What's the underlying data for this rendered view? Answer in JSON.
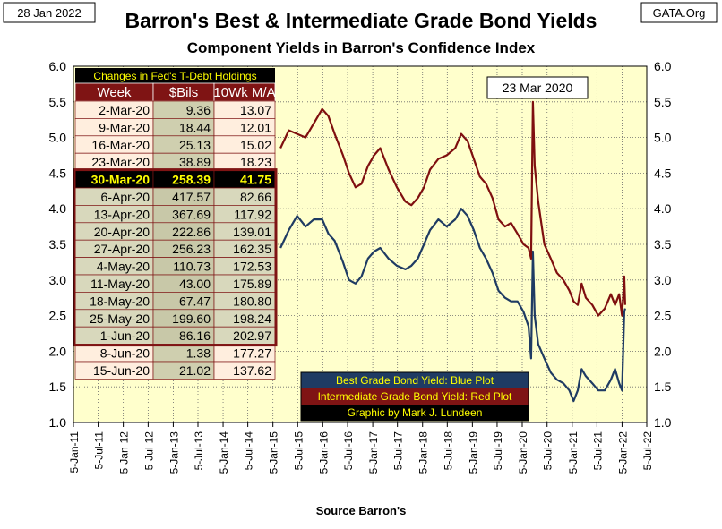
{
  "header": {
    "date": "28 Jan 2022",
    "brand": "GATA.Org",
    "title": "Barron's Best & Intermediate Grade Bond Yields",
    "subtitle": "Component Yields in Barron's Confidence Index",
    "source": "Source Barron's"
  },
  "colors": {
    "plot_bg": "#ffffcc",
    "best_line": "#1f3b63",
    "intermediate_line": "#7f0f0f",
    "table_header_bg": "#7f1414",
    "table_title_fg": "#ffff00",
    "table_cell_light": "#ffeede",
    "table_cell_dark": "#cfcfaf",
    "table_highlight_bg": "#000000",
    "table_highlight_fg": "#ffff00"
  },
  "table": {
    "title": "Changes in Fed's T-Debt Holdings",
    "headers": [
      "Week",
      "$Bils",
      "10Wk M/A"
    ],
    "rows": [
      [
        "2-Mar-20",
        "9.36",
        "13.07"
      ],
      [
        "9-Mar-20",
        "18.44",
        "12.01"
      ],
      [
        "16-Mar-20",
        "25.13",
        "15.02"
      ],
      [
        "23-Mar-20",
        "38.89",
        "18.23"
      ],
      [
        "30-Mar-20",
        "258.39",
        "41.75"
      ],
      [
        "6-Apr-20",
        "417.57",
        "82.66"
      ],
      [
        "13-Apr-20",
        "367.69",
        "117.92"
      ],
      [
        "20-Apr-20",
        "222.86",
        "139.01"
      ],
      [
        "27-Apr-20",
        "256.23",
        "162.35"
      ],
      [
        "4-May-20",
        "110.73",
        "172.53"
      ],
      [
        "11-May-20",
        "43.00",
        "175.89"
      ],
      [
        "18-May-20",
        "67.47",
        "180.80"
      ],
      [
        "25-May-20",
        "199.60",
        "198.24"
      ],
      [
        "1-Jun-20",
        "86.16",
        "202.97"
      ],
      [
        "8-Jun-20",
        "1.38",
        "177.27"
      ],
      [
        "15-Jun-20",
        "21.02",
        "137.62"
      ]
    ],
    "highlight_index": 4,
    "boxed_range": [
      4,
      13
    ]
  },
  "annotation": "23 Mar 2020",
  "legend": [
    {
      "label": "Best Grade Bond Yield: Blue Plot",
      "bg": "#1f3b63",
      "fg": "#ffff00"
    },
    {
      "label": "Intermediate Grade Bond Yield: Red Plot",
      "bg": "#7f1414",
      "fg": "#ffff00"
    },
    {
      "label": "Graphic by Mark J. Lundeen",
      "bg": "#000000",
      "fg": "#ffff00"
    }
  ],
  "chart_data": {
    "type": "line",
    "title": "Barron's Best & Intermediate Grade Bond Yields",
    "subtitle": "Component Yields in Barron's Confidence Index",
    "xlabel": "Source Barron's",
    "ylim": [
      1.0,
      6.0
    ],
    "yticks": [
      "1.0",
      "1.5",
      "2.0",
      "2.5",
      "3.0",
      "3.5",
      "4.0",
      "4.5",
      "5.0",
      "5.5",
      "6.0"
    ],
    "xlim": [
      "2011-01-05",
      "2022-07-05"
    ],
    "xticks": [
      "5-Jan-11",
      "5-Jul-11",
      "5-Jan-12",
      "5-Jul-12",
      "5-Jan-13",
      "5-Jul-13",
      "5-Jan-14",
      "5-Jul-14",
      "5-Jan-15",
      "5-Jul-15",
      "5-Jan-16",
      "5-Jul-16",
      "5-Jan-17",
      "5-Jul-17",
      "5-Jan-18",
      "5-Jul-18",
      "5-Jan-19",
      "5-Jul-19",
      "5-Jan-20",
      "5-Jul-20",
      "5-Jan-21",
      "5-Jul-21",
      "5-Jan-22",
      "5-Jul-22"
    ],
    "grid": true,
    "series": [
      {
        "name": "Best Grade Bond Yield: Blue Plot",
        "color": "#1f3b63",
        "points": [
          [
            "2015-03-01",
            3.45
          ],
          [
            "2015-05-01",
            3.7
          ],
          [
            "2015-07-01",
            3.9
          ],
          [
            "2015-09-01",
            3.75
          ],
          [
            "2015-11-01",
            3.85
          ],
          [
            "2016-01-01",
            3.85
          ],
          [
            "2016-02-15",
            3.65
          ],
          [
            "2016-04-01",
            3.55
          ],
          [
            "2016-06-01",
            3.25
          ],
          [
            "2016-07-15",
            3.0
          ],
          [
            "2016-09-01",
            2.95
          ],
          [
            "2016-10-15",
            3.05
          ],
          [
            "2016-12-01",
            3.3
          ],
          [
            "2017-01-15",
            3.4
          ],
          [
            "2017-03-01",
            3.45
          ],
          [
            "2017-05-01",
            3.3
          ],
          [
            "2017-07-01",
            3.2
          ],
          [
            "2017-09-01",
            3.15
          ],
          [
            "2017-10-15",
            3.2
          ],
          [
            "2017-12-01",
            3.3
          ],
          [
            "2018-01-15",
            3.5
          ],
          [
            "2018-03-01",
            3.7
          ],
          [
            "2018-05-01",
            3.85
          ],
          [
            "2018-07-01",
            3.75
          ],
          [
            "2018-09-01",
            3.85
          ],
          [
            "2018-10-15",
            4.0
          ],
          [
            "2018-12-01",
            3.9
          ],
          [
            "2019-01-15",
            3.7
          ],
          [
            "2019-03-01",
            3.45
          ],
          [
            "2019-04-15",
            3.3
          ],
          [
            "2019-06-01",
            3.1
          ],
          [
            "2019-07-15",
            2.85
          ],
          [
            "2019-09-01",
            2.75
          ],
          [
            "2019-10-15",
            2.7
          ],
          [
            "2019-12-01",
            2.7
          ],
          [
            "2020-01-15",
            2.55
          ],
          [
            "2020-02-20",
            2.35
          ],
          [
            "2020-03-10",
            1.9
          ],
          [
            "2020-03-23",
            3.4
          ],
          [
            "2020-04-05",
            2.5
          ],
          [
            "2020-05-01",
            2.1
          ],
          [
            "2020-06-15",
            1.9
          ],
          [
            "2020-08-01",
            1.7
          ],
          [
            "2020-09-15",
            1.6
          ],
          [
            "2020-11-01",
            1.55
          ],
          [
            "2020-12-15",
            1.45
          ],
          [
            "2021-01-15",
            1.3
          ],
          [
            "2021-02-15",
            1.45
          ],
          [
            "2021-03-15",
            1.75
          ],
          [
            "2021-04-15",
            1.65
          ],
          [
            "2021-06-01",
            1.55
          ],
          [
            "2021-07-15",
            1.45
          ],
          [
            "2021-09-01",
            1.45
          ],
          [
            "2021-10-15",
            1.6
          ],
          [
            "2021-11-15",
            1.75
          ],
          [
            "2021-12-15",
            1.55
          ],
          [
            "2022-01-05",
            1.45
          ],
          [
            "2022-01-21",
            2.55
          ],
          [
            "2022-01-28",
            2.6
          ]
        ]
      },
      {
        "name": "Intermediate Grade Bond Yield: Red Plot",
        "color": "#7f0f0f",
        "points": [
          [
            "2015-03-01",
            4.85
          ],
          [
            "2015-05-01",
            5.1
          ],
          [
            "2015-07-01",
            5.05
          ],
          [
            "2015-09-01",
            5.0
          ],
          [
            "2015-11-01",
            5.2
          ],
          [
            "2016-01-01",
            5.4
          ],
          [
            "2016-02-15",
            5.3
          ],
          [
            "2016-04-01",
            5.05
          ],
          [
            "2016-06-01",
            4.75
          ],
          [
            "2016-07-15",
            4.5
          ],
          [
            "2016-09-01",
            4.3
          ],
          [
            "2016-10-15",
            4.35
          ],
          [
            "2016-12-01",
            4.6
          ],
          [
            "2017-01-15",
            4.75
          ],
          [
            "2017-03-01",
            4.85
          ],
          [
            "2017-05-01",
            4.55
          ],
          [
            "2017-07-01",
            4.3
          ],
          [
            "2017-09-01",
            4.1
          ],
          [
            "2017-10-15",
            4.05
          ],
          [
            "2017-12-01",
            4.15
          ],
          [
            "2018-01-15",
            4.3
          ],
          [
            "2018-03-01",
            4.55
          ],
          [
            "2018-05-01",
            4.7
          ],
          [
            "2018-07-01",
            4.75
          ],
          [
            "2018-09-01",
            4.85
          ],
          [
            "2018-10-15",
            5.05
          ],
          [
            "2018-12-01",
            4.95
          ],
          [
            "2019-01-15",
            4.7
          ],
          [
            "2019-03-01",
            4.45
          ],
          [
            "2019-04-15",
            4.35
          ],
          [
            "2019-06-01",
            4.15
          ],
          [
            "2019-07-15",
            3.85
          ],
          [
            "2019-09-01",
            3.75
          ],
          [
            "2019-10-15",
            3.8
          ],
          [
            "2019-12-01",
            3.65
          ],
          [
            "2020-01-15",
            3.5
          ],
          [
            "2020-02-20",
            3.45
          ],
          [
            "2020-03-10",
            3.3
          ],
          [
            "2020-03-23",
            5.5
          ],
          [
            "2020-04-05",
            4.6
          ],
          [
            "2020-05-01",
            4.1
          ],
          [
            "2020-06-15",
            3.5
          ],
          [
            "2020-08-01",
            3.3
          ],
          [
            "2020-09-15",
            3.1
          ],
          [
            "2020-11-01",
            3.0
          ],
          [
            "2020-12-15",
            2.85
          ],
          [
            "2021-01-15",
            2.7
          ],
          [
            "2021-02-15",
            2.65
          ],
          [
            "2021-03-15",
            2.95
          ],
          [
            "2021-04-15",
            2.75
          ],
          [
            "2021-06-01",
            2.65
          ],
          [
            "2021-07-15",
            2.5
          ],
          [
            "2021-09-01",
            2.6
          ],
          [
            "2021-10-15",
            2.8
          ],
          [
            "2021-11-15",
            2.65
          ],
          [
            "2021-12-15",
            2.8
          ],
          [
            "2022-01-05",
            2.5
          ],
          [
            "2022-01-21",
            3.05
          ],
          [
            "2022-01-28",
            2.65
          ]
        ]
      }
    ]
  }
}
